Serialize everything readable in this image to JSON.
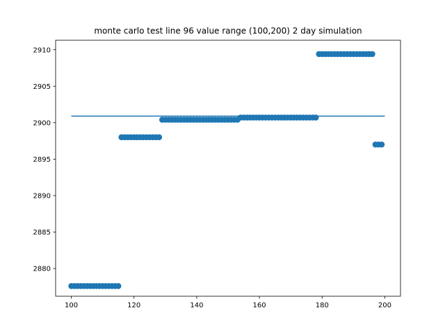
{
  "chart_data": {
    "type": "scatter",
    "title": "monte carlo test line 96 value range (100,200) 2 day simulation",
    "xlabel": "",
    "ylabel": "",
    "xlim": [
      95,
      205
    ],
    "ylim": [
      2876.2,
      2911.3
    ],
    "xticks": [
      100,
      120,
      140,
      160,
      180,
      200
    ],
    "yticks": [
      2880,
      2885,
      2890,
      2895,
      2900,
      2905,
      2910
    ],
    "grid": false,
    "legend": "none",
    "point_color": "#1f77b4",
    "series": [
      {
        "kind": "points",
        "points": [
          [
            100,
            2877.6
          ],
          [
            101,
            2877.6
          ],
          [
            102,
            2877.6
          ],
          [
            103,
            2877.6
          ],
          [
            104,
            2877.6
          ],
          [
            105,
            2877.6
          ],
          [
            106,
            2877.6
          ],
          [
            107,
            2877.6
          ],
          [
            108,
            2877.6
          ],
          [
            109,
            2877.6
          ],
          [
            110,
            2877.6
          ],
          [
            111,
            2877.6
          ],
          [
            112,
            2877.6
          ],
          [
            113,
            2877.6
          ],
          [
            114,
            2877.6
          ],
          [
            115,
            2877.6
          ],
          [
            116,
            2898.0
          ],
          [
            117,
            2898.0
          ],
          [
            118,
            2898.0
          ],
          [
            119,
            2898.0
          ],
          [
            120,
            2898.0
          ],
          [
            121,
            2898.0
          ],
          [
            122,
            2898.0
          ],
          [
            123,
            2898.0
          ],
          [
            124,
            2898.0
          ],
          [
            125,
            2898.0
          ],
          [
            126,
            2898.0
          ],
          [
            127,
            2898.0
          ],
          [
            128,
            2898.0
          ],
          [
            129,
            2900.4
          ],
          [
            130,
            2900.4
          ],
          [
            131,
            2900.4
          ],
          [
            132,
            2900.4
          ],
          [
            133,
            2900.4
          ],
          [
            134,
            2900.4
          ],
          [
            135,
            2900.4
          ],
          [
            136,
            2900.4
          ],
          [
            137,
            2900.4
          ],
          [
            138,
            2900.4
          ],
          [
            139,
            2900.4
          ],
          [
            140,
            2900.4
          ],
          [
            141,
            2900.4
          ],
          [
            142,
            2900.4
          ],
          [
            143,
            2900.4
          ],
          [
            144,
            2900.4
          ],
          [
            145,
            2900.4
          ],
          [
            146,
            2900.4
          ],
          [
            147,
            2900.4
          ],
          [
            148,
            2900.4
          ],
          [
            149,
            2900.4
          ],
          [
            150,
            2900.4
          ],
          [
            151,
            2900.4
          ],
          [
            152,
            2900.4
          ],
          [
            153,
            2900.4
          ],
          [
            154,
            2900.7
          ],
          [
            155,
            2900.7
          ],
          [
            156,
            2900.7
          ],
          [
            157,
            2900.7
          ],
          [
            158,
            2900.7
          ],
          [
            159,
            2900.7
          ],
          [
            160,
            2900.7
          ],
          [
            161,
            2900.7
          ],
          [
            162,
            2900.7
          ],
          [
            163,
            2900.7
          ],
          [
            164,
            2900.7
          ],
          [
            165,
            2900.7
          ],
          [
            166,
            2900.7
          ],
          [
            167,
            2900.7
          ],
          [
            168,
            2900.7
          ],
          [
            169,
            2900.7
          ],
          [
            170,
            2900.7
          ],
          [
            171,
            2900.7
          ],
          [
            172,
            2900.7
          ],
          [
            173,
            2900.7
          ],
          [
            174,
            2900.7
          ],
          [
            175,
            2900.7
          ],
          [
            176,
            2900.7
          ],
          [
            177,
            2900.7
          ],
          [
            178,
            2900.7
          ],
          [
            179,
            2909.4
          ],
          [
            180,
            2909.4
          ],
          [
            181,
            2909.4
          ],
          [
            182,
            2909.4
          ],
          [
            183,
            2909.4
          ],
          [
            184,
            2909.4
          ],
          [
            185,
            2909.4
          ],
          [
            186,
            2909.4
          ],
          [
            187,
            2909.4
          ],
          [
            188,
            2909.4
          ],
          [
            189,
            2909.4
          ],
          [
            190,
            2909.4
          ],
          [
            191,
            2909.4
          ],
          [
            192,
            2909.4
          ],
          [
            193,
            2909.4
          ],
          [
            194,
            2909.4
          ],
          [
            195,
            2909.4
          ],
          [
            196,
            2909.4
          ],
          [
            197,
            2897.0
          ],
          [
            198,
            2897.0
          ],
          [
            199,
            2897.0
          ]
        ]
      },
      {
        "kind": "line",
        "x": [
          100,
          200
        ],
        "y": [
          2900.9,
          2900.9
        ]
      }
    ]
  }
}
